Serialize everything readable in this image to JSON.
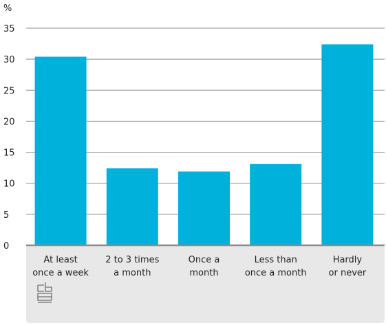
{
  "chart_data": {
    "type": "bar",
    "unit": "%",
    "categories": [
      [
        "At least",
        "once a week"
      ],
      [
        "2 to 3 times",
        "a month"
      ],
      [
        "Once a",
        "month"
      ],
      [
        "Less than",
        "once a month"
      ],
      [
        "Hardly",
        "or never"
      ]
    ],
    "values": [
      30.4,
      12.4,
      11.9,
      13.1,
      32.4
    ],
    "ylim": [
      0,
      35
    ],
    "yticks": [
      "0",
      "5",
      "10",
      "15",
      "20",
      "25",
      "30",
      "35"
    ],
    "grid": true,
    "bar_color": "#00b1dc",
    "grid_color": "#8c8c8c",
    "axis_color": "#8c8c8c",
    "label_panel_color": "#e8e8e8"
  },
  "logo": {
    "name": "cbs-logo-icon",
    "text": "cbs"
  }
}
